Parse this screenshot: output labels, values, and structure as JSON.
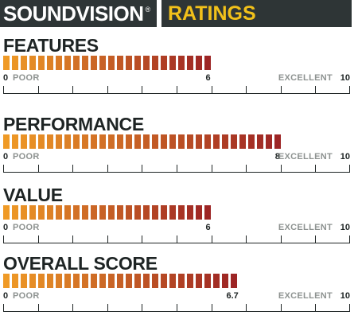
{
  "header": {
    "brand": "SOUNDVISION",
    "brand_mark": "®",
    "section_label": "RATINGS"
  },
  "scale": {
    "min_label": "0",
    "low_label": "POOR",
    "high_label": "EXCELLENT",
    "max_label": "10",
    "min": 0,
    "max": 10
  },
  "colors": {
    "bar_start": "#ef9a26",
    "bar_end": "#9d2525",
    "header_bg": "#2e3536",
    "header_text": "#ffffff",
    "ratings_text": "#f2c11a",
    "muted_text": "#8d9290"
  },
  "ratings": [
    {
      "label": "FEATURES",
      "score": 6,
      "score_label": "6"
    },
    {
      "label": "PERFORMANCE",
      "score": 8,
      "score_label": "8"
    },
    {
      "label": "VALUE",
      "score": 6,
      "score_label": "6"
    },
    {
      "label": "OVERALL SCORE",
      "score": 6.7,
      "score_label": "6.7"
    }
  ]
}
